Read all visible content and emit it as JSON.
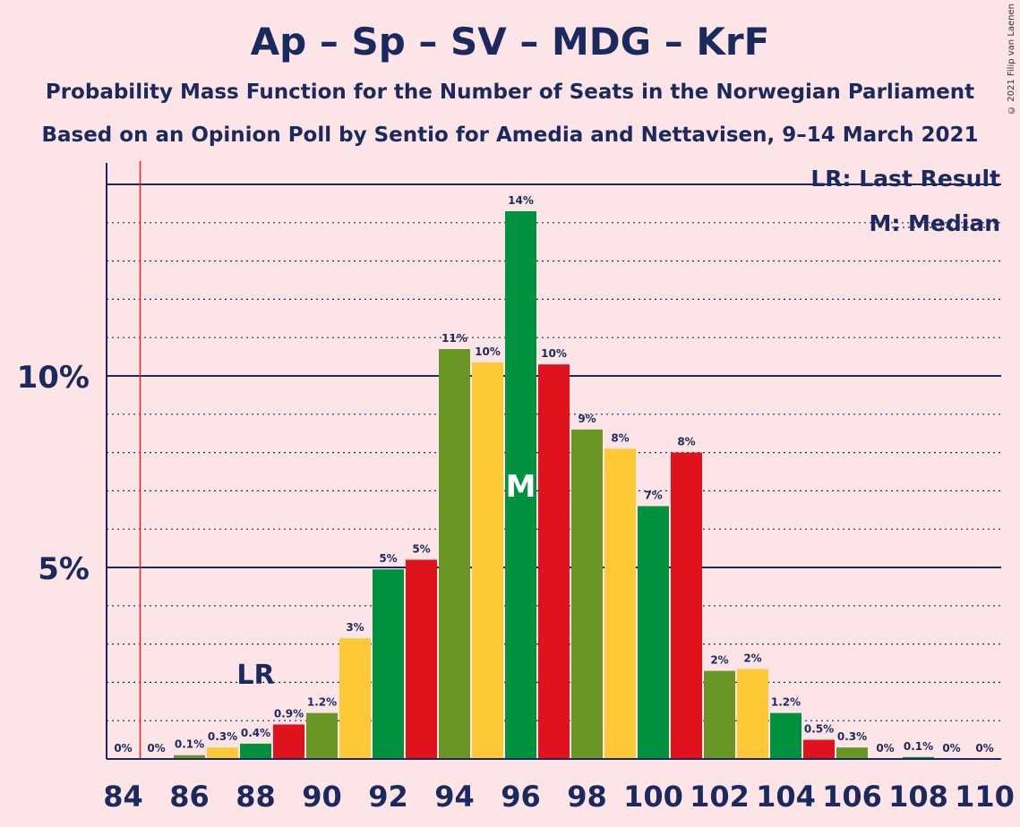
{
  "title": "Ap – Sp – SV – MDG – KrF",
  "subtitle_1": "Probability Mass Function for the Number of Seats in the Norwegian Parliament",
  "subtitle_2": "Based on an Opinion Poll by Sentio for Amedia and Nettavisen, 9–14 March 2021",
  "copyright": "© 2021 Filip van Laenen",
  "legend": {
    "last_result": "LR: Last Result",
    "median": "M: Median"
  },
  "colors": {
    "background": "#fde4e6",
    "axis": "#1a2a5e",
    "last_result_line": "#e8202a",
    "party_colors": [
      "#00923f",
      "#e0121e",
      "#6a9625",
      "#ffc836"
    ]
  },
  "chart_data": {
    "type": "bar",
    "x": [
      84,
      85,
      86,
      87,
      88,
      89,
      90,
      91,
      92,
      93,
      94,
      95,
      96,
      97,
      98,
      99,
      100,
      101,
      102,
      103,
      104,
      105,
      106,
      107,
      108,
      109,
      110
    ],
    "values": [
      0,
      0,
      0.1,
      0.3,
      0.4,
      0.9,
      1.2,
      3.15,
      4.95,
      5.2,
      10.7,
      10.35,
      14.3,
      10.3,
      8.6,
      8.1,
      6.6,
      8.0,
      2.3,
      2.35,
      1.2,
      0.5,
      0.3,
      0,
      0.05,
      0,
      0
    ],
    "labels": [
      "0%",
      "0%",
      "0.1%",
      "0.3%",
      "0.4%",
      "0.9%",
      "1.2%",
      "3%",
      "5%",
      "5%",
      "11%",
      "10%",
      "14%",
      "10%",
      "9%",
      "8%",
      "7%",
      "8%",
      "2%",
      "2%",
      "1.2%",
      "0.5%",
      "0.3%",
      "0%",
      "0.1%",
      "0%",
      "0%"
    ],
    "x_ticks": [
      "84",
      "86",
      "88",
      "90",
      "92",
      "94",
      "96",
      "98",
      "100",
      "102",
      "104",
      "106",
      "108",
      "110"
    ],
    "y_ticks": [
      "5%",
      "10%"
    ],
    "ylim": [
      0,
      15.6
    ],
    "last_result": 85,
    "last_result_label": "LR",
    "median": 96,
    "median_label": "M"
  }
}
